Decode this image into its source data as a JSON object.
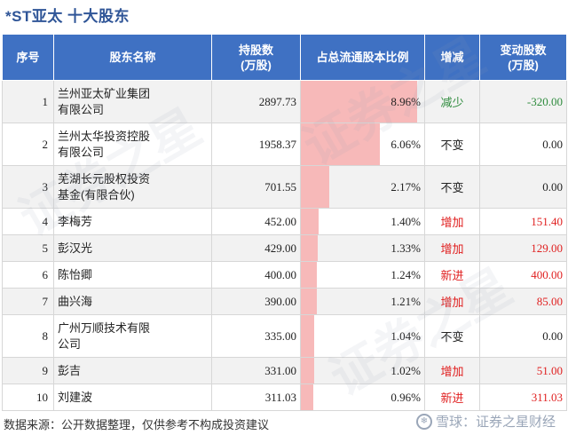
{
  "title": "*ST亚太  十大股东",
  "table": {
    "headers": [
      "序号",
      "股东名称",
      "持股数\n(万股)",
      "占总流通股本比例",
      "增减",
      "变动股数\n(万股)"
    ],
    "rows": [
      {
        "rank": "1",
        "name": "兰州亚太矿业集团\n有限公司",
        "shares": "2897.73",
        "ratio_text": "8.96%",
        "ratio": 8.96,
        "change": "减少",
        "change_color": "#2e8b3d",
        "delta": "-320.00",
        "delta_color": "#2e8b3d",
        "tall": true
      },
      {
        "rank": "2",
        "name": "兰州太华投资控股\n有限公司",
        "shares": "1958.37",
        "ratio_text": "6.06%",
        "ratio": 6.06,
        "change": "不变",
        "change_color": "#222222",
        "delta": "0.00",
        "delta_color": "#222222",
        "tall": true
      },
      {
        "rank": "3",
        "name": "芜湖长元股权投资\n基金(有限合伙)",
        "shares": "701.55",
        "ratio_text": "2.17%",
        "ratio": 2.17,
        "change": "不变",
        "change_color": "#222222",
        "delta": "0.00",
        "delta_color": "#222222",
        "tall": true
      },
      {
        "rank": "4",
        "name": "李梅芳",
        "shares": "452.00",
        "ratio_text": "1.40%",
        "ratio": 1.4,
        "change": "增加",
        "change_color": "#e02020",
        "delta": "151.40",
        "delta_color": "#e02020",
        "tall": false
      },
      {
        "rank": "5",
        "name": "彭汉光",
        "shares": "429.00",
        "ratio_text": "1.33%",
        "ratio": 1.33,
        "change": "增加",
        "change_color": "#e02020",
        "delta": "129.00",
        "delta_color": "#e02020",
        "tall": false
      },
      {
        "rank": "6",
        "name": "陈怡卿",
        "shares": "400.00",
        "ratio_text": "1.24%",
        "ratio": 1.24,
        "change": "新进",
        "change_color": "#e02020",
        "delta": "400.00",
        "delta_color": "#e02020",
        "tall": false
      },
      {
        "rank": "7",
        "name": "曲兴海",
        "shares": "390.00",
        "ratio_text": "1.21%",
        "ratio": 1.21,
        "change": "增加",
        "change_color": "#e02020",
        "delta": "85.00",
        "delta_color": "#e02020",
        "tall": false
      },
      {
        "rank": "8",
        "name": "广州万顺技术有限\n公司",
        "shares": "335.00",
        "ratio_text": "1.04%",
        "ratio": 1.04,
        "change": "不变",
        "change_color": "#222222",
        "delta": "0.00",
        "delta_color": "#222222",
        "tall": true
      },
      {
        "rank": "9",
        "name": "彭吉",
        "shares": "331.00",
        "ratio_text": "1.02%",
        "ratio": 1.02,
        "change": "增加",
        "change_color": "#e02020",
        "delta": "51.00",
        "delta_color": "#e02020",
        "tall": false
      },
      {
        "rank": "10",
        "name": "刘建波",
        "shares": "311.03",
        "ratio_text": "0.96%",
        "ratio": 0.96,
        "change": "新进",
        "change_color": "#e02020",
        "delta": "311.03",
        "delta_color": "#e02020",
        "tall": false
      }
    ],
    "ratio_scale_max": 9.5
  },
  "footer": "数据来源：公开数据整理，仅供参考不构成投资建议",
  "brand": "雪球：证券之星财经",
  "watermark": "证券之星",
  "colors": {
    "header_bg": "#3f71c3",
    "title": "#2f5597",
    "bar": "#f7b9b9"
  }
}
